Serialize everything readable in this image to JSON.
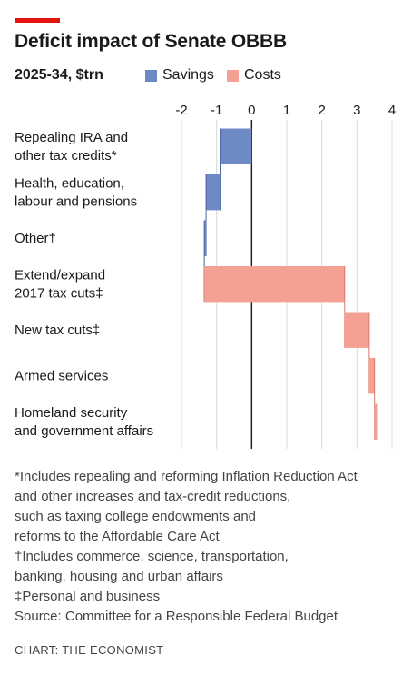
{
  "header": {
    "title": "Deficit impact of Senate OBBB",
    "subtitle": "2025-34, $trn"
  },
  "colors": {
    "savings": "#6d8ac4",
    "costs": "#f4a193",
    "accent": "#e3120b"
  },
  "footnotes": [
    "*Includes repealing and reforming Inflation Reduction Act",
    "and other increases and tax-credit reductions,",
    "such as taxing college endowments and",
    "reforms to the Affordable Care Act",
    "†Includes commerce, science, transportation,",
    "banking, housing and urban affairs",
    "‡Personal and business",
    "Source: Committee for a Responsible Federal Budget"
  ],
  "credit": "CHART: THE ECONOMIST",
  "chart_data": {
    "type": "bar",
    "subtype": "waterfall",
    "orientation": "horizontal",
    "title": "Deficit impact of Senate OBBB",
    "subtitle": "2025-34, $trn",
    "xlim": [
      -2,
      4
    ],
    "xticks": [
      "-2",
      "-1",
      "0",
      "1",
      "2",
      "3",
      "4"
    ],
    "xtick_values": [
      -2,
      -1,
      0,
      1,
      2,
      3,
      4
    ],
    "legend": {
      "placement": "top",
      "entries": [
        "Savings",
        "Costs"
      ]
    },
    "grid": true,
    "categories": [
      [
        "Repealing IRA and",
        "other tax credits*"
      ],
      [
        "Health, education,",
        "labour and pensions"
      ],
      [
        "Other†"
      ],
      [
        "Extend/expand",
        "2017 tax cuts‡"
      ],
      [
        "New tax cuts‡"
      ],
      [
        "Armed services"
      ],
      [
        "Homeland security",
        "and government affairs"
      ]
    ],
    "values": [
      -0.9,
      -0.4,
      -0.05,
      4.0,
      0.7,
      0.15,
      0.1
    ],
    "series_type": [
      "Savings",
      "Savings",
      "Savings",
      "Costs",
      "Costs",
      "Costs",
      "Costs"
    ]
  }
}
